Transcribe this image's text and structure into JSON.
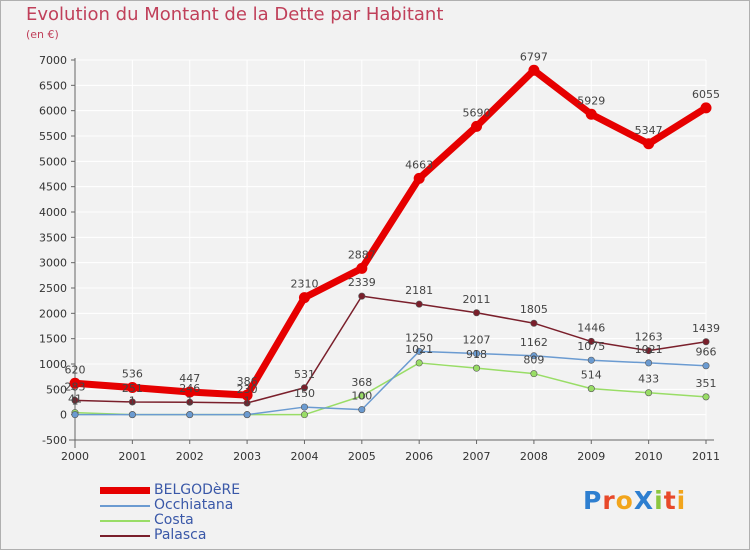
{
  "title": "Evolution du Montant de la Dette par Habitant",
  "subtitle": "(en €)",
  "logo": {
    "text": "ProXiti",
    "letters": [
      "P",
      "r",
      "o",
      "X",
      "i",
      "t",
      "i"
    ],
    "colors": [
      "#2e7fd0",
      "#e8492a",
      "#f2a51c",
      "#2e7fd0",
      "#8cc63f",
      "#e8492a",
      "#f2a51c"
    ]
  },
  "chart_data": {
    "type": "line",
    "x": [
      "2000",
      "2001",
      "2002",
      "2003",
      "2004",
      "2005",
      "2006",
      "2007",
      "2008",
      "2009",
      "2010",
      "2011"
    ],
    "ylim": [
      -500,
      7000
    ],
    "yticks": [
      -500,
      0,
      500,
      1000,
      1500,
      2000,
      2500,
      3000,
      3500,
      4000,
      4500,
      5000,
      5500,
      6000,
      6500,
      7000
    ],
    "grid": true,
    "legend_position": "bottom-left",
    "series": [
      {
        "name": "BELGODèRE",
        "color": "#e60000",
        "width": 7,
        "values": [
          620,
          536,
          447,
          386,
          2310,
          2887,
          4663,
          5690,
          6797,
          5929,
          5347,
          6055
        ],
        "labels": [
          "620",
          "536",
          "447",
          "386",
          "2310",
          "2887",
          "4663",
          "5690",
          "6797",
          "5929",
          "5347",
          "6055"
        ]
      },
      {
        "name": "Occhiatana",
        "color": "#6b9bd1",
        "width": 1.5,
        "values": [
          1,
          1,
          1,
          1,
          150,
          100,
          1250,
          1207,
          1162,
          1075,
          1021,
          966
        ],
        "labels": [
          "1",
          "1",
          "1",
          "1",
          "150",
          "100",
          "1250",
          "1207",
          "1162",
          "1075",
          "1021",
          "966"
        ]
      },
      {
        "name": "Costa",
        "color": "#99dd66",
        "width": 1.5,
        "values": [
          41,
          0,
          0,
          0,
          0,
          368,
          1021,
          918,
          809,
          514,
          433,
          351
        ],
        "labels": [
          "41",
          "",
          "",
          "",
          "",
          "368",
          "1021",
          "918",
          "809",
          "514",
          "433",
          "351"
        ]
      },
      {
        "name": "Palasca",
        "color": "#7a1f2b",
        "width": 1.5,
        "values": [
          283,
          251,
          246,
          230,
          531,
          2339,
          2181,
          2011,
          1805,
          1446,
          1263,
          1439
        ],
        "labels": [
          "283",
          "251",
          "246",
          "230",
          "531",
          "2339",
          "2181",
          "2011",
          "1805",
          "1446",
          "1263",
          "1439"
        ]
      }
    ]
  }
}
